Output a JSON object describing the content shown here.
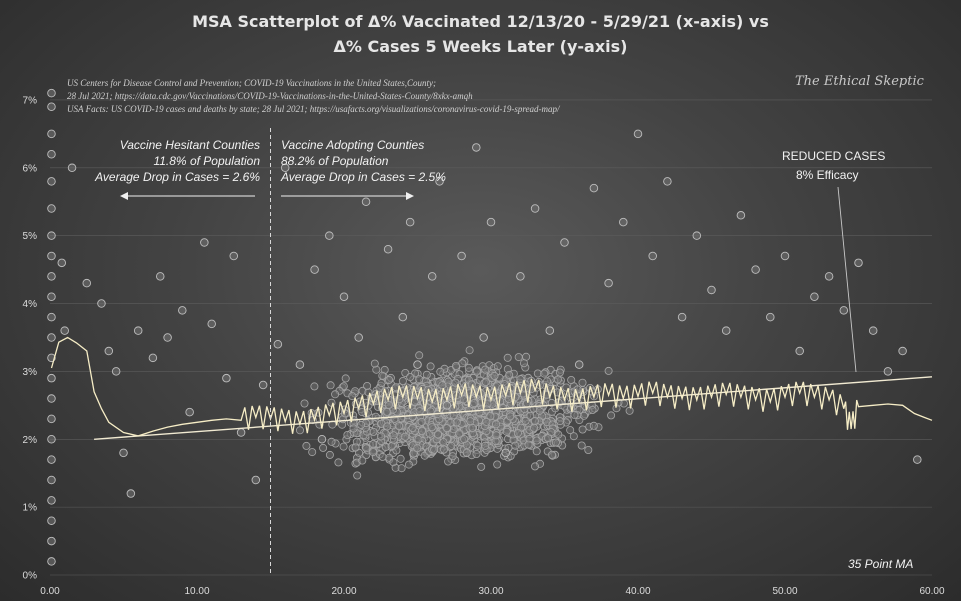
{
  "chart_data": {
    "type": "scatter",
    "title_line1": "MSA Scatterplot of Δ% Vaccinated 12/13/20 - 5/29/21 (x-axis) vs",
    "title_line2": "Δ% Cases 5 Weeks Later (y-axis)",
    "source_lines": [
      "US Centers for Disease Control and Prevention; COVID-19 Vaccinations in the United States,County;",
      "28 Jul 2021; https://data.cdc.gov/Vaccinations/COVID-19-Vaccinations-in-the-United-States-County/8xkx-amqh",
      "USA Facts: US COVID-19 cases and deaths by state; 28 Jul 2021; https://usafacts.org/visualizations/coronavirus-covid-19-spread-map/"
    ],
    "watermark": "The Ethical Skeptic",
    "xlim": [
      0,
      60
    ],
    "ylim": [
      0,
      0.075
    ],
    "x_ticks": [
      "0.00",
      "10.00",
      "20.00",
      "30.00",
      "40.00",
      "50.00",
      "60.00"
    ],
    "y_ticks": [
      "0%",
      "1%",
      "2%",
      "3%",
      "4%",
      "5%",
      "6%",
      "7%"
    ],
    "divider_x": 15,
    "annotations": {
      "hesitant": [
        "Vaccine Hesitant Counties",
        "11.8% of Population",
        "Average Drop in Cases = 2.6%"
      ],
      "adopting": [
        "Vaccine Adopting Counties",
        "88.2% of Population",
        "Average Drop in Cases = 2.5%"
      ],
      "reduced": [
        "REDUCED CASES",
        "8% Efficacy"
      ],
      "ma_label": "35 Point MA"
    },
    "trendline": [
      [
        3,
        0.02
      ],
      [
        60,
        0.0292
      ]
    ],
    "moving_average": [
      [
        0.1,
        0.0305
      ],
      [
        0.6,
        0.0343
      ],
      [
        1.2,
        0.035
      ],
      [
        1.8,
        0.0342
      ],
      [
        2.5,
        0.033
      ],
      [
        3.0,
        0.027
      ],
      [
        3.5,
        0.0245
      ],
      [
        4.0,
        0.0225
      ],
      [
        5.0,
        0.021
      ],
      [
        6.0,
        0.0205
      ],
      [
        7.0,
        0.0212
      ],
      [
        8.0,
        0.0218
      ],
      [
        9.0,
        0.0222
      ],
      [
        10.0,
        0.0225
      ],
      [
        11.0,
        0.0228
      ],
      [
        12.0,
        0.023
      ],
      [
        13.0,
        0.0228
      ],
      [
        14.0,
        0.0232
      ],
      [
        15.0,
        0.023
      ],
      [
        16.0,
        0.0226
      ],
      [
        17.0,
        0.0222
      ],
      [
        18.0,
        0.0228
      ],
      [
        19.0,
        0.0235
      ],
      [
        20.0,
        0.0238
      ],
      [
        21.0,
        0.0245
      ],
      [
        22.0,
        0.0252
      ],
      [
        23.0,
        0.0258
      ],
      [
        24.0,
        0.0262
      ],
      [
        25.0,
        0.026
      ],
      [
        26.0,
        0.0255
      ],
      [
        27.0,
        0.0258
      ],
      [
        28.0,
        0.0265
      ],
      [
        29.0,
        0.0262
      ],
      [
        30.0,
        0.0258
      ],
      [
        31.0,
        0.0264
      ],
      [
        32.0,
        0.0268
      ],
      [
        33.0,
        0.0272
      ],
      [
        34.0,
        0.0262
      ],
      [
        35.0,
        0.0258
      ],
      [
        36.0,
        0.0255
      ],
      [
        37.0,
        0.0262
      ],
      [
        38.0,
        0.0265
      ],
      [
        39.0,
        0.026
      ],
      [
        40.0,
        0.0263
      ],
      [
        41.0,
        0.0268
      ],
      [
        42.0,
        0.0262
      ],
      [
        43.0,
        0.026
      ],
      [
        44.0,
        0.0258
      ],
      [
        45.0,
        0.0262
      ],
      [
        46.0,
        0.0266
      ],
      [
        47.0,
        0.0262
      ],
      [
        48.0,
        0.0258
      ],
      [
        49.0,
        0.0255
      ],
      [
        50.0,
        0.0262
      ],
      [
        51.0,
        0.0268
      ],
      [
        52.0,
        0.0262
      ],
      [
        53.0,
        0.0258
      ],
      [
        54.0,
        0.0245
      ],
      [
        54.5,
        0.0215
      ],
      [
        55.0,
        0.0248
      ],
      [
        56.0,
        0.025
      ],
      [
        57.0,
        0.0252
      ],
      [
        58.0,
        0.025
      ],
      [
        58.8,
        0.0238
      ],
      [
        59.5,
        0.0232
      ],
      [
        60.0,
        0.0228
      ]
    ],
    "series": [
      {
        "points": [
          [
            0.1,
            0.071
          ],
          [
            0.1,
            0.069
          ],
          [
            0.1,
            0.065
          ],
          [
            0.1,
            0.062
          ],
          [
            0.1,
            0.058
          ],
          [
            0.1,
            0.054
          ],
          [
            0.1,
            0.05
          ],
          [
            0.1,
            0.047
          ],
          [
            0.1,
            0.044
          ],
          [
            0.1,
            0.041
          ],
          [
            0.1,
            0.038
          ],
          [
            0.1,
            0.035
          ],
          [
            0.1,
            0.032
          ],
          [
            0.1,
            0.029
          ],
          [
            0.1,
            0.026
          ],
          [
            0.1,
            0.023
          ],
          [
            0.1,
            0.02
          ],
          [
            0.1,
            0.017
          ],
          [
            0.1,
            0.014
          ],
          [
            0.1,
            0.011
          ],
          [
            0.1,
            0.008
          ],
          [
            0.1,
            0.005
          ],
          [
            0.1,
            0.002
          ],
          [
            0.8,
            0.046
          ],
          [
            1.0,
            0.036
          ],
          [
            1.5,
            0.06
          ],
          [
            2.5,
            0.043
          ],
          [
            3.5,
            0.04
          ],
          [
            4.0,
            0.033
          ],
          [
            4.5,
            0.03
          ],
          [
            5.0,
            0.018
          ],
          [
            5.5,
            0.012
          ],
          [
            6.0,
            0.036
          ],
          [
            7.0,
            0.032
          ],
          [
            7.5,
            0.044
          ],
          [
            8.0,
            0.035
          ],
          [
            9.0,
            0.039
          ],
          [
            9.5,
            0.024
          ],
          [
            10.5,
            0.049
          ],
          [
            11.0,
            0.037
          ],
          [
            12.0,
            0.029
          ],
          [
            12.5,
            0.047
          ],
          [
            13.0,
            0.021
          ],
          [
            14.0,
            0.014
          ],
          [
            14.5,
            0.028
          ],
          [
            15.5,
            0.034
          ],
          [
            16.0,
            0.06
          ],
          [
            17.0,
            0.031
          ],
          [
            18.0,
            0.045
          ],
          [
            18.5,
            0.02
          ],
          [
            19.0,
            0.05
          ],
          [
            20.0,
            0.041
          ],
          [
            21.0,
            0.035
          ],
          [
            21.5,
            0.055
          ],
          [
            22.0,
            0.026
          ],
          [
            23.0,
            0.048
          ],
          [
            24.0,
            0.038
          ],
          [
            24.5,
            0.052
          ],
          [
            25.0,
            0.031
          ],
          [
            26.0,
            0.044
          ],
          [
            26.5,
            0.058
          ],
          [
            27.0,
            0.025
          ],
          [
            28.0,
            0.047
          ],
          [
            29.0,
            0.063
          ],
          [
            29.5,
            0.035
          ],
          [
            30.0,
            0.052
          ],
          [
            31.0,
            0.018
          ],
          [
            32.0,
            0.044
          ],
          [
            33.0,
            0.054
          ],
          [
            34.0,
            0.036
          ],
          [
            35.0,
            0.049
          ],
          [
            36.0,
            0.031
          ],
          [
            37.0,
            0.057
          ],
          [
            38.0,
            0.043
          ],
          [
            39.0,
            0.052
          ],
          [
            40.0,
            0.065
          ],
          [
            41.0,
            0.047
          ],
          [
            42.0,
            0.058
          ],
          [
            43.0,
            0.038
          ],
          [
            44.0,
            0.05
          ],
          [
            45.0,
            0.042
          ],
          [
            46.0,
            0.036
          ],
          [
            47.0,
            0.053
          ],
          [
            48.0,
            0.045
          ],
          [
            49.0,
            0.038
          ],
          [
            50.0,
            0.047
          ],
          [
            51.0,
            0.033
          ],
          [
            52.0,
            0.041
          ],
          [
            53.0,
            0.044
          ],
          [
            54.0,
            0.039
          ],
          [
            55.0,
            0.046
          ],
          [
            56.0,
            0.036
          ],
          [
            57.0,
            0.03
          ],
          [
            58.0,
            0.033
          ],
          [
            59.0,
            0.017
          ]
        ]
      }
    ]
  }
}
